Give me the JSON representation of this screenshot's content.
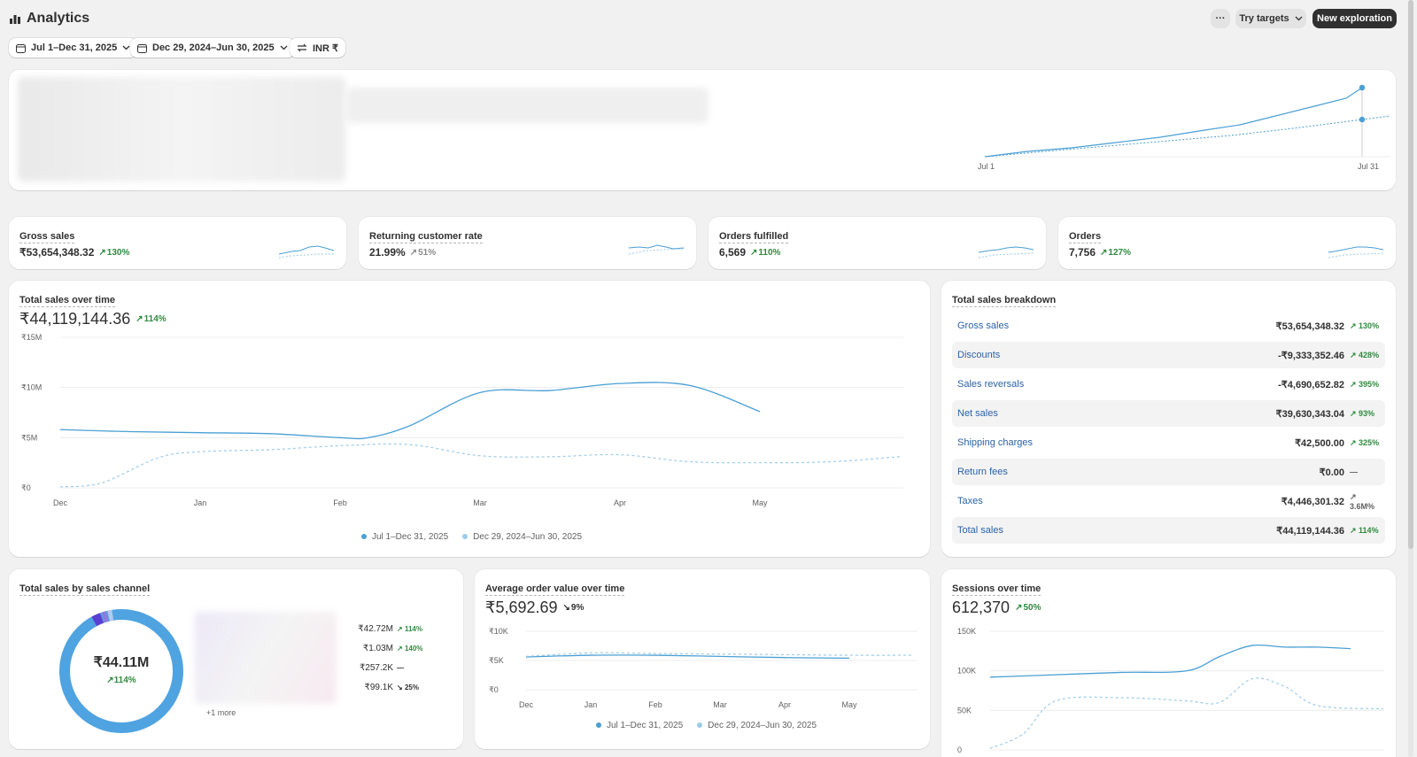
{
  "header": {
    "title": "Analytics",
    "more_label": "···",
    "try_targets_label": "Try targets",
    "new_exploration_label": "New exploration",
    "filters": [
      {
        "label": "Jul 1–Dec 31, 2025"
      },
      {
        "label": "Dec 29, 2024–Jun 30, 2025"
      },
      {
        "label": "INR ₹"
      }
    ]
  },
  "hero": {
    "x_start": "Jul 1",
    "x_end": "Jul 31"
  },
  "metrics": [
    {
      "label": "Gross sales",
      "value": "₹53,654,348.32",
      "change": "130%"
    },
    {
      "label": "Returning customer rate",
      "value": "21.99%",
      "change": "51%"
    },
    {
      "label": "Orders fulfilled",
      "value": "6,569",
      "change": "110%"
    },
    {
      "label": "Orders",
      "value": "7,756",
      "change": "127%"
    }
  ],
  "total_sales": {
    "label": "Total sales over time",
    "value": "₹44,119,144.36",
    "change": "114%",
    "legend": [
      "Jul 1–Dec 31, 2025",
      "Dec 29, 2024–Jun 30, 2025"
    ]
  },
  "breakdown": {
    "label": "Total sales breakdown",
    "rows": [
      {
        "label": "Gross sales",
        "value": "₹53,654,348.32",
        "change": "130%"
      },
      {
        "label": "Discounts",
        "value": "-₹9,333,352.46",
        "change": "428%"
      },
      {
        "label": "Sales reversals",
        "value": "-₹4,690,652.82",
        "change": "395%"
      },
      {
        "label": "Net sales",
        "value": "₹39,630,343.04",
        "change": "93%"
      },
      {
        "label": "Shipping charges",
        "value": "₹42,500.00",
        "change": "325%"
      },
      {
        "label": "Return fees",
        "value": "₹0.00",
        "change": "—"
      },
      {
        "label": "Taxes",
        "value": "₹4,446,301.32",
        "change": "3.6M%"
      },
      {
        "label": "Total sales",
        "value": "₹44,119,144.36",
        "change": "114%"
      }
    ]
  },
  "channel": {
    "label": "Total sales by sales channel",
    "center_value": "₹44.11M",
    "center_change": "114%",
    "rows": [
      {
        "value": "₹42.72M",
        "change": "114%"
      },
      {
        "value": "₹1.03M",
        "change": "140%"
      },
      {
        "value": "₹257.2K",
        "change": "—"
      },
      {
        "value": "₹99.1K",
        "change": "25%"
      }
    ],
    "more": "+1 more",
    "colors": [
      "#4fa3e0",
      "#5b3fd1",
      "#8f7ae0",
      "#b8c7ef",
      "#d6dcf3"
    ]
  },
  "aov": {
    "label": "Average order value over time",
    "value": "₹5,692.69",
    "change": "9%",
    "legend": [
      "Jul 1–Dec 31, 2025",
      "Dec 29, 2024–Jun 30, 2025"
    ]
  },
  "sessions": {
    "label": "Sessions over time",
    "value": "612,370",
    "change": "50%"
  },
  "colors": {
    "current": "#4a9fd4",
    "previous": "#9ccbe8",
    "up": "#2f8a3f",
    "link": "#2a63a8"
  },
  "chart_data": [
    {
      "type": "line",
      "title": "Total sales over time",
      "categories": [
        "Dec",
        "Jan",
        "Feb",
        "Mar",
        "Apr",
        "May"
      ],
      "y_ticks": [
        "₹0",
        "₹5M",
        "₹10M",
        "₹15M"
      ],
      "ylim": [
        0,
        15000000
      ],
      "series": [
        {
          "name": "Jul 1–Dec 31, 2025",
          "x": [
            0,
            0.5,
            1,
            1.5,
            2,
            2.2,
            2.5,
            3,
            3.5,
            4,
            4.5,
            5
          ],
          "y": [
            5800000,
            5600000,
            5500000,
            5400000,
            5000000,
            5000000,
            6200000,
            9500000,
            9700000,
            10400000,
            10200000,
            7600000
          ]
        },
        {
          "name": "Dec 29, 2024–Jun 30, 2025",
          "x": [
            0,
            0.3,
            0.7,
            1,
            1.5,
            2,
            2.5,
            3,
            3.5,
            4,
            4.5,
            5,
            5.5,
            6
          ],
          "y": [
            100000,
            500000,
            3000000,
            3600000,
            3800000,
            4200000,
            4300000,
            3200000,
            3100000,
            3300000,
            2600000,
            2500000,
            2600000,
            3100000
          ]
        }
      ]
    },
    {
      "type": "line",
      "title": "Average order value over time",
      "categories": [
        "Dec",
        "Jan",
        "Feb",
        "Mar",
        "Apr",
        "May"
      ],
      "y_ticks": [
        "₹0",
        "₹5K",
        "₹10K"
      ],
      "ylim": [
        0,
        10000
      ],
      "series": [
        {
          "name": "Jul 1–Dec 31, 2025",
          "x": [
            0,
            1,
            2,
            3,
            4,
            5
          ],
          "y": [
            5600,
            5900,
            5900,
            5700,
            5500,
            5400
          ]
        },
        {
          "name": "Dec 29, 2024–Jun 30, 2025",
          "x": [
            0,
            1,
            2,
            3,
            4,
            5,
            6
          ],
          "y": [
            5700,
            6300,
            6200,
            6100,
            6000,
            5900,
            5900
          ]
        }
      ]
    },
    {
      "type": "line",
      "title": "Sessions over time",
      "y_ticks": [
        "0",
        "50K",
        "100K",
        "150K"
      ],
      "ylim": [
        0,
        150000
      ],
      "series": [
        {
          "name": "Jul 1–Dec 31, 2025",
          "x": [
            0,
            1,
            2,
            3,
            3.5,
            4,
            4.5,
            5,
            5.5
          ],
          "y": [
            92000,
            95000,
            98000,
            100000,
            118000,
            132000,
            130000,
            130000,
            128000
          ]
        },
        {
          "name": "Dec 29, 2024–Jun 30, 2025",
          "x": [
            0,
            0.5,
            1,
            2,
            3,
            3.5,
            4,
            4.5,
            5,
            6
          ],
          "y": [
            2000,
            20000,
            62000,
            66000,
            62000,
            60000,
            90000,
            80000,
            56000,
            52000
          ]
        }
      ]
    },
    {
      "type": "pie",
      "title": "Total sales by sales channel",
      "values": [
        42720000,
        1030000,
        257200,
        99100
      ]
    }
  ]
}
